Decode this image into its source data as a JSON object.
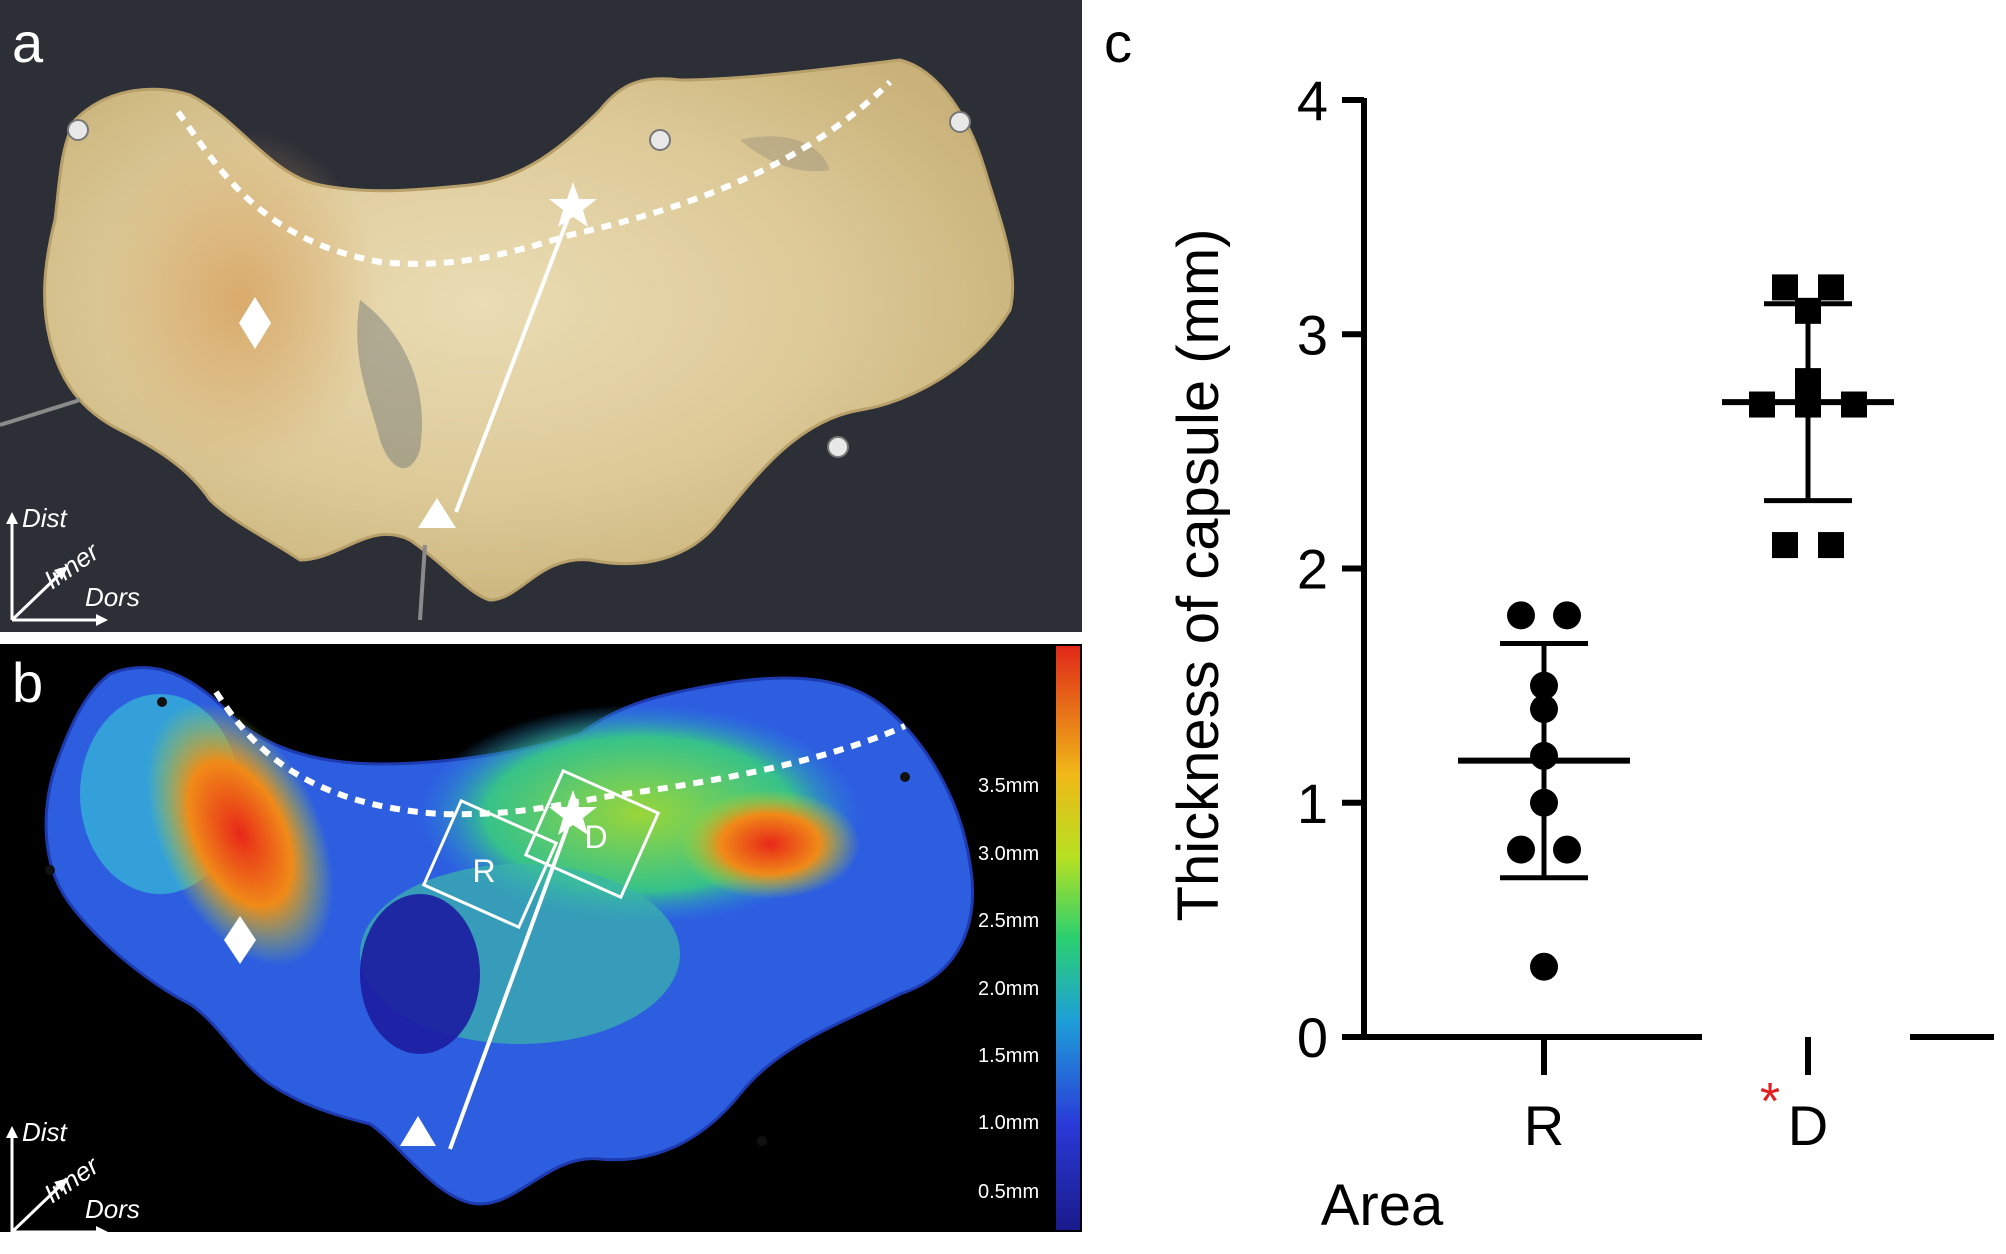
{
  "panels": {
    "a": {
      "label": "a",
      "orientation": {
        "dist": "Dist",
        "inner": "Inner",
        "dors": "Dors"
      }
    },
    "b": {
      "label": "b",
      "orientation": {
        "dist": "Dist",
        "inner": "Inner",
        "dors": "Dors"
      },
      "roi_r": "R",
      "roi_d": "D",
      "colorbar_ticks": [
        "3.5mm",
        "3.0mm",
        "2.5mm",
        "2.0mm",
        "1.5mm",
        "1.0mm",
        "0.5mm"
      ]
    },
    "c": {
      "label": "c",
      "significance_mark": "*"
    }
  },
  "colors": {
    "background_dark": "#2e3038",
    "tissue": "#e2d2a6",
    "significance": "#e02020",
    "axis": "#000000"
  },
  "chart_data": {
    "type": "scatter",
    "title": "",
    "xlabel": "Area",
    "ylabel": "Thickness of capsule (mm)",
    "ylim": [
      0,
      4
    ],
    "yticks": [
      "0",
      "1",
      "2",
      "3",
      "4"
    ],
    "categories": [
      "R",
      "D"
    ],
    "grid": false,
    "series": [
      {
        "category": "R",
        "marker": "circle",
        "points": [
          1.8,
          1.8,
          1.5,
          1.4,
          1.2,
          1.0,
          0.8,
          0.8,
          0.3
        ],
        "mean": 1.18,
        "sd_upper": 1.68,
        "sd_lower": 0.68
      },
      {
        "category": "D",
        "marker": "square",
        "points": [
          3.2,
          3.2,
          3.1,
          2.8,
          2.7,
          2.7,
          2.7,
          2.1,
          2.1
        ],
        "mean": 2.71,
        "sd_upper": 3.13,
        "sd_lower": 2.29
      }
    ]
  }
}
